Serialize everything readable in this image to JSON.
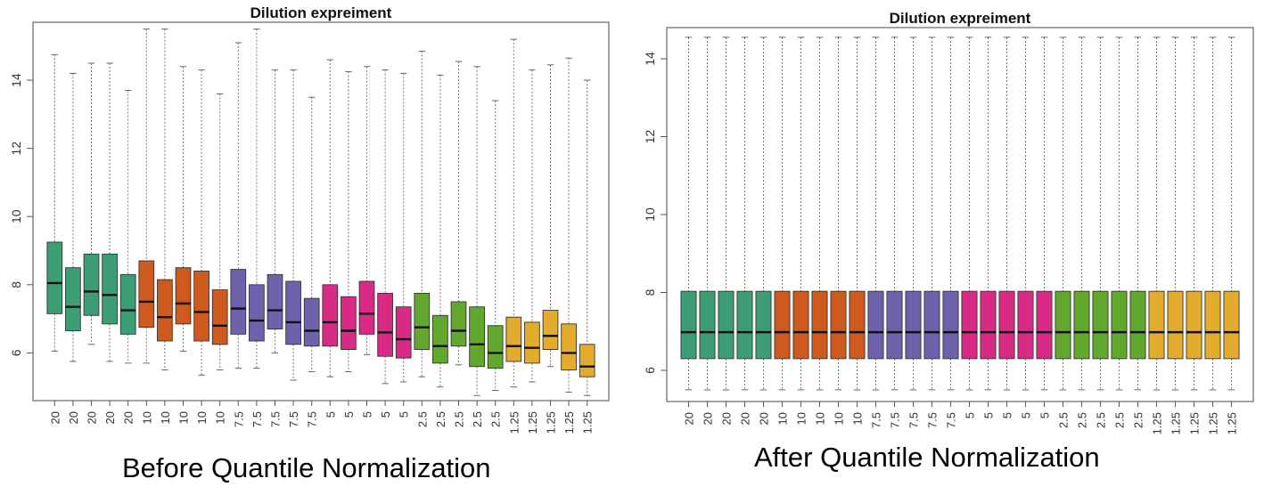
{
  "chart_data": [
    {
      "type": "boxplot",
      "title": "Dilution expreiment",
      "caption": "Before Quantile Normalization",
      "xlabel": "",
      "ylabel": "",
      "ylim": [
        4.6,
        15.7
      ],
      "yticks": [
        "6",
        "8",
        "10",
        "12",
        "14"
      ],
      "grid": false,
      "categories": [
        "20",
        "20",
        "20",
        "20",
        "20",
        "10",
        "10",
        "10",
        "10",
        "10",
        "7.5",
        "7.5",
        "7.5",
        "7.5",
        "7.5",
        "5",
        "5",
        "5",
        "5",
        "5",
        "2.5",
        "2.5",
        "2.5",
        "2.5",
        "2.5",
        "1.25",
        "1.25",
        "1.25",
        "1.25",
        "1.25"
      ],
      "group_colors": {
        "20": "#3d9e76",
        "10": "#cf5a1d",
        "7.5": "#6e62ad",
        "5": "#d92a86",
        "2.5": "#63a82e",
        "1.25": "#e3ac2c"
      },
      "boxes": [
        {
          "min": 6.05,
          "q1": 7.15,
          "median": 8.05,
          "q3": 9.25,
          "max": 14.75
        },
        {
          "min": 5.75,
          "q1": 6.65,
          "median": 7.35,
          "q3": 8.5,
          "max": 14.2
        },
        {
          "min": 6.25,
          "q1": 7.1,
          "median": 7.8,
          "q3": 8.9,
          "max": 14.5
        },
        {
          "min": 5.75,
          "q1": 6.85,
          "median": 7.7,
          "q3": 8.9,
          "max": 14.5
        },
        {
          "min": 5.7,
          "q1": 6.55,
          "median": 7.25,
          "q3": 8.3,
          "max": 13.7
        },
        {
          "min": 5.7,
          "q1": 6.75,
          "median": 7.5,
          "q3": 8.7,
          "max": 15.5
        },
        {
          "min": 5.5,
          "q1": 6.35,
          "median": 7.05,
          "q3": 8.15,
          "max": 15.5
        },
        {
          "min": 6.05,
          "q1": 6.85,
          "median": 7.45,
          "q3": 8.5,
          "max": 14.4
        },
        {
          "min": 5.35,
          "q1": 6.35,
          "median": 7.2,
          "q3": 8.4,
          "max": 14.3
        },
        {
          "min": 5.5,
          "q1": 6.25,
          "median": 6.8,
          "q3": 7.85,
          "max": 13.6
        },
        {
          "min": 5.55,
          "q1": 6.55,
          "median": 7.3,
          "q3": 8.45,
          "max": 15.1
        },
        {
          "min": 5.55,
          "q1": 6.35,
          "median": 6.95,
          "q3": 8.0,
          "max": 15.5
        },
        {
          "min": 6.0,
          "q1": 6.7,
          "median": 7.25,
          "q3": 8.3,
          "max": 14.3
        },
        {
          "min": 5.2,
          "q1": 6.25,
          "median": 6.9,
          "q3": 8.1,
          "max": 14.3
        },
        {
          "min": 5.45,
          "q1": 6.2,
          "median": 6.65,
          "q3": 7.6,
          "max": 13.5
        },
        {
          "min": 5.3,
          "q1": 6.2,
          "median": 6.9,
          "q3": 8.0,
          "max": 14.6
        },
        {
          "min": 5.45,
          "q1": 6.1,
          "median": 6.65,
          "q3": 7.65,
          "max": 14.25
        },
        {
          "min": 5.95,
          "q1": 6.55,
          "median": 7.15,
          "q3": 8.1,
          "max": 14.4
        },
        {
          "min": 5.1,
          "q1": 5.9,
          "median": 6.6,
          "q3": 7.75,
          "max": 14.3
        },
        {
          "min": 5.15,
          "q1": 5.85,
          "median": 6.4,
          "q3": 7.35,
          "max": 14.2
        },
        {
          "min": 5.3,
          "q1": 6.1,
          "median": 6.75,
          "q3": 7.75,
          "max": 14.85
        },
        {
          "min": 5.0,
          "q1": 5.7,
          "median": 6.2,
          "q3": 7.1,
          "max": 14.15
        },
        {
          "min": 5.65,
          "q1": 6.2,
          "median": 6.65,
          "q3": 7.5,
          "max": 14.55
        },
        {
          "min": 4.75,
          "q1": 5.6,
          "median": 6.25,
          "q3": 7.35,
          "max": 14.4
        },
        {
          "min": 4.9,
          "q1": 5.55,
          "median": 6.0,
          "q3": 6.8,
          "max": 13.4
        },
        {
          "min": 5.0,
          "q1": 5.75,
          "median": 6.2,
          "q3": 7.05,
          "max": 15.2
        },
        {
          "min": 5.15,
          "q1": 5.7,
          "median": 6.15,
          "q3": 6.9,
          "max": 14.3
        },
        {
          "min": 5.6,
          "q1": 6.1,
          "median": 6.5,
          "q3": 7.25,
          "max": 14.45
        },
        {
          "min": 4.85,
          "q1": 5.5,
          "median": 6.0,
          "q3": 6.85,
          "max": 14.65
        },
        {
          "min": 4.75,
          "q1": 5.3,
          "median": 5.6,
          "q3": 6.25,
          "max": 14.0
        }
      ]
    },
    {
      "type": "boxplot",
      "title": "Dilution expreiment",
      "caption": "After Quantile Normalization",
      "xlabel": "",
      "ylabel": "",
      "ylim": [
        5.2,
        14.8
      ],
      "yticks": [
        "6",
        "8",
        "10",
        "12",
        "14"
      ],
      "grid": false,
      "categories": [
        "20",
        "20",
        "20",
        "20",
        "20",
        "10",
        "10",
        "10",
        "10",
        "10",
        "7.5",
        "7.5",
        "7.5",
        "7.5",
        "7.5",
        "5",
        "5",
        "5",
        "5",
        "5",
        "2.5",
        "2.5",
        "2.5",
        "2.5",
        "2.5",
        "1.25",
        "1.25",
        "1.25",
        "1.25",
        "1.25"
      ],
      "group_colors": {
        "20": "#3d9e76",
        "10": "#cf5a1d",
        "7.5": "#6e62ad",
        "5": "#d92a86",
        "2.5": "#63a82e",
        "1.25": "#e3ac2c"
      },
      "boxes_all": {
        "min": 5.5,
        "q1": 6.3,
        "median": 6.98,
        "q3": 8.03,
        "max": 14.55
      }
    }
  ]
}
